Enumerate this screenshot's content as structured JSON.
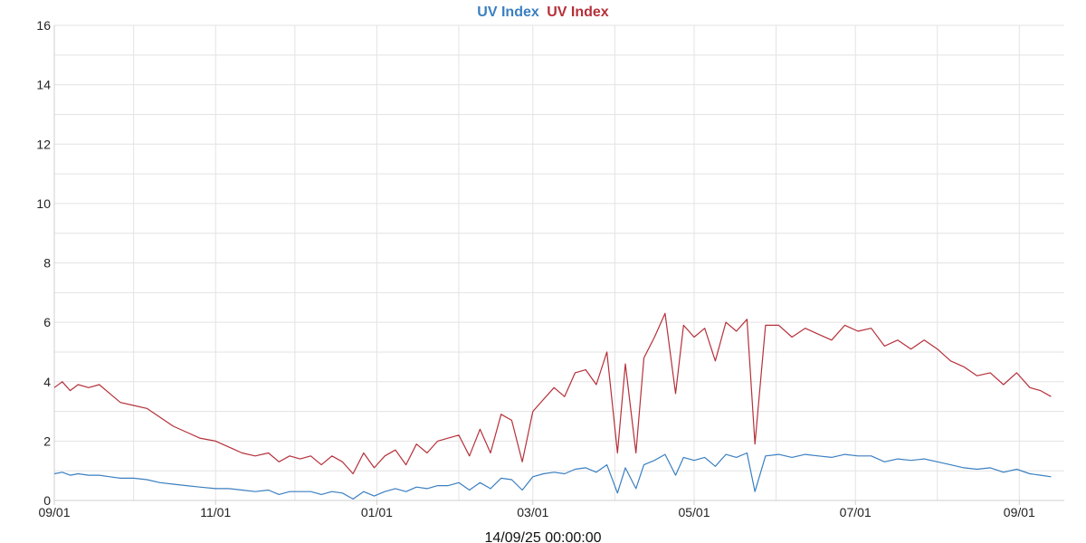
{
  "chart_data": {
    "type": "line",
    "title_parts": [
      {
        "text": "UV Index",
        "color": "#3a7fc1"
      },
      {
        "text": "UV Index",
        "color": "#b5303a"
      }
    ],
    "xlabel": "14/09/25 00:00:00",
    "ylabel": "",
    "ylim": [
      0,
      16
    ],
    "xlim": [
      "2024-09-01",
      "2025-09-18"
    ],
    "x_tick_labels": [
      "09/01",
      "11/01",
      "01/01",
      "03/01",
      "05/01",
      "07/01",
      "09/01"
    ],
    "x_tick_dates": [
      "2024-09-01",
      "2024-11-01",
      "2025-01-01",
      "2025-03-01",
      "2025-05-01",
      "2025-07-01",
      "2025-09-01"
    ],
    "y_ticks": [
      0,
      2,
      4,
      6,
      8,
      10,
      12,
      14,
      16
    ],
    "grid": true,
    "series": [
      {
        "color": "#b5303a",
        "x": [
          "2024-09-01",
          "2024-09-04",
          "2024-09-07",
          "2024-09-10",
          "2024-09-14",
          "2024-09-18",
          "2024-09-22",
          "2024-09-26",
          "2024-10-01",
          "2024-10-06",
          "2024-10-11",
          "2024-10-16",
          "2024-10-21",
          "2024-10-26",
          "2024-11-01",
          "2024-11-06",
          "2024-11-11",
          "2024-11-16",
          "2024-11-21",
          "2024-11-25",
          "2024-11-29",
          "2024-12-03",
          "2024-12-07",
          "2024-12-11",
          "2024-12-15",
          "2024-12-19",
          "2024-12-23",
          "2024-12-27",
          "2024-12-31",
          "2025-01-04",
          "2025-01-08",
          "2025-01-12",
          "2025-01-16",
          "2025-01-20",
          "2025-01-24",
          "2025-01-28",
          "2025-02-01",
          "2025-02-05",
          "2025-02-09",
          "2025-02-13",
          "2025-02-17",
          "2025-02-21",
          "2025-02-25",
          "2025-03-01",
          "2025-03-05",
          "2025-03-09",
          "2025-03-13",
          "2025-03-17",
          "2025-03-21",
          "2025-03-25",
          "2025-03-29",
          "2025-04-02",
          "2025-04-05",
          "2025-04-09",
          "2025-04-12",
          "2025-04-16",
          "2025-04-20",
          "2025-04-24",
          "2025-04-27",
          "2025-05-01",
          "2025-05-05",
          "2025-05-09",
          "2025-05-13",
          "2025-05-17",
          "2025-05-21",
          "2025-05-24",
          "2025-05-28",
          "2025-06-02",
          "2025-06-07",
          "2025-06-12",
          "2025-06-17",
          "2025-06-22",
          "2025-06-27",
          "2025-07-02",
          "2025-07-07",
          "2025-07-12",
          "2025-07-17",
          "2025-07-22",
          "2025-07-27",
          "2025-08-01",
          "2025-08-06",
          "2025-08-11",
          "2025-08-16",
          "2025-08-21",
          "2025-08-26",
          "2025-08-31",
          "2025-09-05",
          "2025-09-09",
          "2025-09-13"
        ],
        "values": [
          3.8,
          4.0,
          3.7,
          3.9,
          3.8,
          3.9,
          3.6,
          3.3,
          3.2,
          3.1,
          2.8,
          2.5,
          2.3,
          2.1,
          2.0,
          1.8,
          1.6,
          1.5,
          1.6,
          1.3,
          1.5,
          1.4,
          1.5,
          1.2,
          1.5,
          1.3,
          0.9,
          1.6,
          1.1,
          1.5,
          1.7,
          1.2,
          1.9,
          1.6,
          2.0,
          2.1,
          2.2,
          1.5,
          2.4,
          1.6,
          2.9,
          2.7,
          1.3,
          3.0,
          3.4,
          3.8,
          3.5,
          4.3,
          4.4,
          3.9,
          5.0,
          1.6,
          4.6,
          1.6,
          4.8,
          5.5,
          6.3,
          3.6,
          5.9,
          5.5,
          5.8,
          4.7,
          6.0,
          5.7,
          6.1,
          1.9,
          5.9,
          5.9,
          5.5,
          5.8,
          5.6,
          5.4,
          5.9,
          5.7,
          5.8,
          5.2,
          5.4,
          5.1,
          5.4,
          5.1,
          4.7,
          4.5,
          4.2,
          4.3,
          3.9,
          4.3,
          3.8,
          3.7,
          3.5
        ]
      },
      {
        "color": "#3a7fc1",
        "x": [
          "2024-09-01",
          "2024-09-04",
          "2024-09-07",
          "2024-09-10",
          "2024-09-14",
          "2024-09-18",
          "2024-09-22",
          "2024-09-26",
          "2024-10-01",
          "2024-10-06",
          "2024-10-11",
          "2024-10-16",
          "2024-10-21",
          "2024-10-26",
          "2024-11-01",
          "2024-11-06",
          "2024-11-11",
          "2024-11-16",
          "2024-11-21",
          "2024-11-25",
          "2024-11-29",
          "2024-12-03",
          "2024-12-07",
          "2024-12-11",
          "2024-12-15",
          "2024-12-19",
          "2024-12-23",
          "2024-12-27",
          "2024-12-31",
          "2025-01-04",
          "2025-01-08",
          "2025-01-12",
          "2025-01-16",
          "2025-01-20",
          "2025-01-24",
          "2025-01-28",
          "2025-02-01",
          "2025-02-05",
          "2025-02-09",
          "2025-02-13",
          "2025-02-17",
          "2025-02-21",
          "2025-02-25",
          "2025-03-01",
          "2025-03-05",
          "2025-03-09",
          "2025-03-13",
          "2025-03-17",
          "2025-03-21",
          "2025-03-25",
          "2025-03-29",
          "2025-04-02",
          "2025-04-05",
          "2025-04-09",
          "2025-04-12",
          "2025-04-16",
          "2025-04-20",
          "2025-04-24",
          "2025-04-27",
          "2025-05-01",
          "2025-05-05",
          "2025-05-09",
          "2025-05-13",
          "2025-05-17",
          "2025-05-21",
          "2025-05-24",
          "2025-05-28",
          "2025-06-02",
          "2025-06-07",
          "2025-06-12",
          "2025-06-17",
          "2025-06-22",
          "2025-06-27",
          "2025-07-02",
          "2025-07-07",
          "2025-07-12",
          "2025-07-17",
          "2025-07-22",
          "2025-07-27",
          "2025-08-01",
          "2025-08-06",
          "2025-08-11",
          "2025-08-16",
          "2025-08-21",
          "2025-08-26",
          "2025-08-31",
          "2025-09-05",
          "2025-09-09",
          "2025-09-13"
        ],
        "values": [
          0.9,
          0.95,
          0.85,
          0.9,
          0.85,
          0.85,
          0.8,
          0.75,
          0.75,
          0.7,
          0.6,
          0.55,
          0.5,
          0.45,
          0.4,
          0.4,
          0.35,
          0.3,
          0.35,
          0.2,
          0.3,
          0.3,
          0.3,
          0.2,
          0.3,
          0.25,
          0.05,
          0.3,
          0.15,
          0.3,
          0.4,
          0.3,
          0.45,
          0.4,
          0.5,
          0.5,
          0.6,
          0.35,
          0.6,
          0.4,
          0.75,
          0.7,
          0.35,
          0.8,
          0.9,
          0.95,
          0.9,
          1.05,
          1.1,
          0.95,
          1.2,
          0.25,
          1.1,
          0.4,
          1.2,
          1.35,
          1.55,
          0.85,
          1.45,
          1.35,
          1.45,
          1.15,
          1.55,
          1.45,
          1.6,
          0.3,
          1.5,
          1.55,
          1.45,
          1.55,
          1.5,
          1.45,
          1.55,
          1.5,
          1.5,
          1.3,
          1.4,
          1.35,
          1.4,
          1.3,
          1.2,
          1.1,
          1.05,
          1.1,
          0.95,
          1.05,
          0.9,
          0.85,
          0.8
        ]
      }
    ]
  }
}
